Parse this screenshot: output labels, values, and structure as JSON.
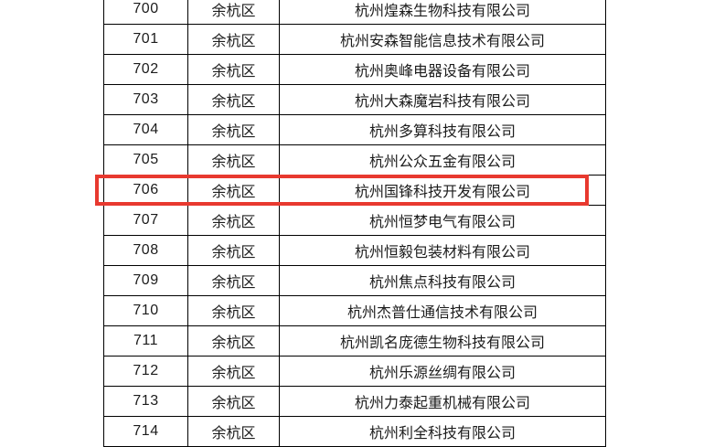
{
  "highlight": {
    "color": "#e8392f",
    "row_number": "706"
  },
  "table": {
    "columns": [
      "number",
      "district",
      "company"
    ],
    "rows": [
      {
        "number": "700",
        "district": "余杭区",
        "company": "杭州煌森生物科技有限公司",
        "highlighted": false
      },
      {
        "number": "701",
        "district": "余杭区",
        "company": "杭州安森智能信息技术有限公司",
        "highlighted": false
      },
      {
        "number": "702",
        "district": "余杭区",
        "company": "杭州奥峰电器设备有限公司",
        "highlighted": false
      },
      {
        "number": "703",
        "district": "余杭区",
        "company": "杭州大森魔岩科技有限公司",
        "highlighted": false
      },
      {
        "number": "704",
        "district": "余杭区",
        "company": "杭州多算科技有限公司",
        "highlighted": false
      },
      {
        "number": "705",
        "district": "余杭区",
        "company": "杭州公众五金有限公司",
        "highlighted": false
      },
      {
        "number": "706",
        "district": "余杭区",
        "company": "杭州国锋科技开发有限公司",
        "highlighted": true
      },
      {
        "number": "707",
        "district": "余杭区",
        "company": "杭州恒梦电气有限公司",
        "highlighted": false
      },
      {
        "number": "708",
        "district": "余杭区",
        "company": "杭州恒毅包装材料有限公司",
        "highlighted": false
      },
      {
        "number": "709",
        "district": "余杭区",
        "company": "杭州焦点科技有限公司",
        "highlighted": false
      },
      {
        "number": "710",
        "district": "余杭区",
        "company": "杭州杰普仕通信技术有限公司",
        "highlighted": false
      },
      {
        "number": "711",
        "district": "余杭区",
        "company": "杭州凯名庞德生物科技有限公司",
        "highlighted": false
      },
      {
        "number": "712",
        "district": "余杭区",
        "company": "杭州乐源丝绸有限公司",
        "highlighted": false
      },
      {
        "number": "713",
        "district": "余杭区",
        "company": "杭州力泰起重机械有限公司",
        "highlighted": false
      },
      {
        "number": "714",
        "district": "余杭区",
        "company": "杭州利全科技有限公司",
        "highlighted": false
      }
    ]
  }
}
